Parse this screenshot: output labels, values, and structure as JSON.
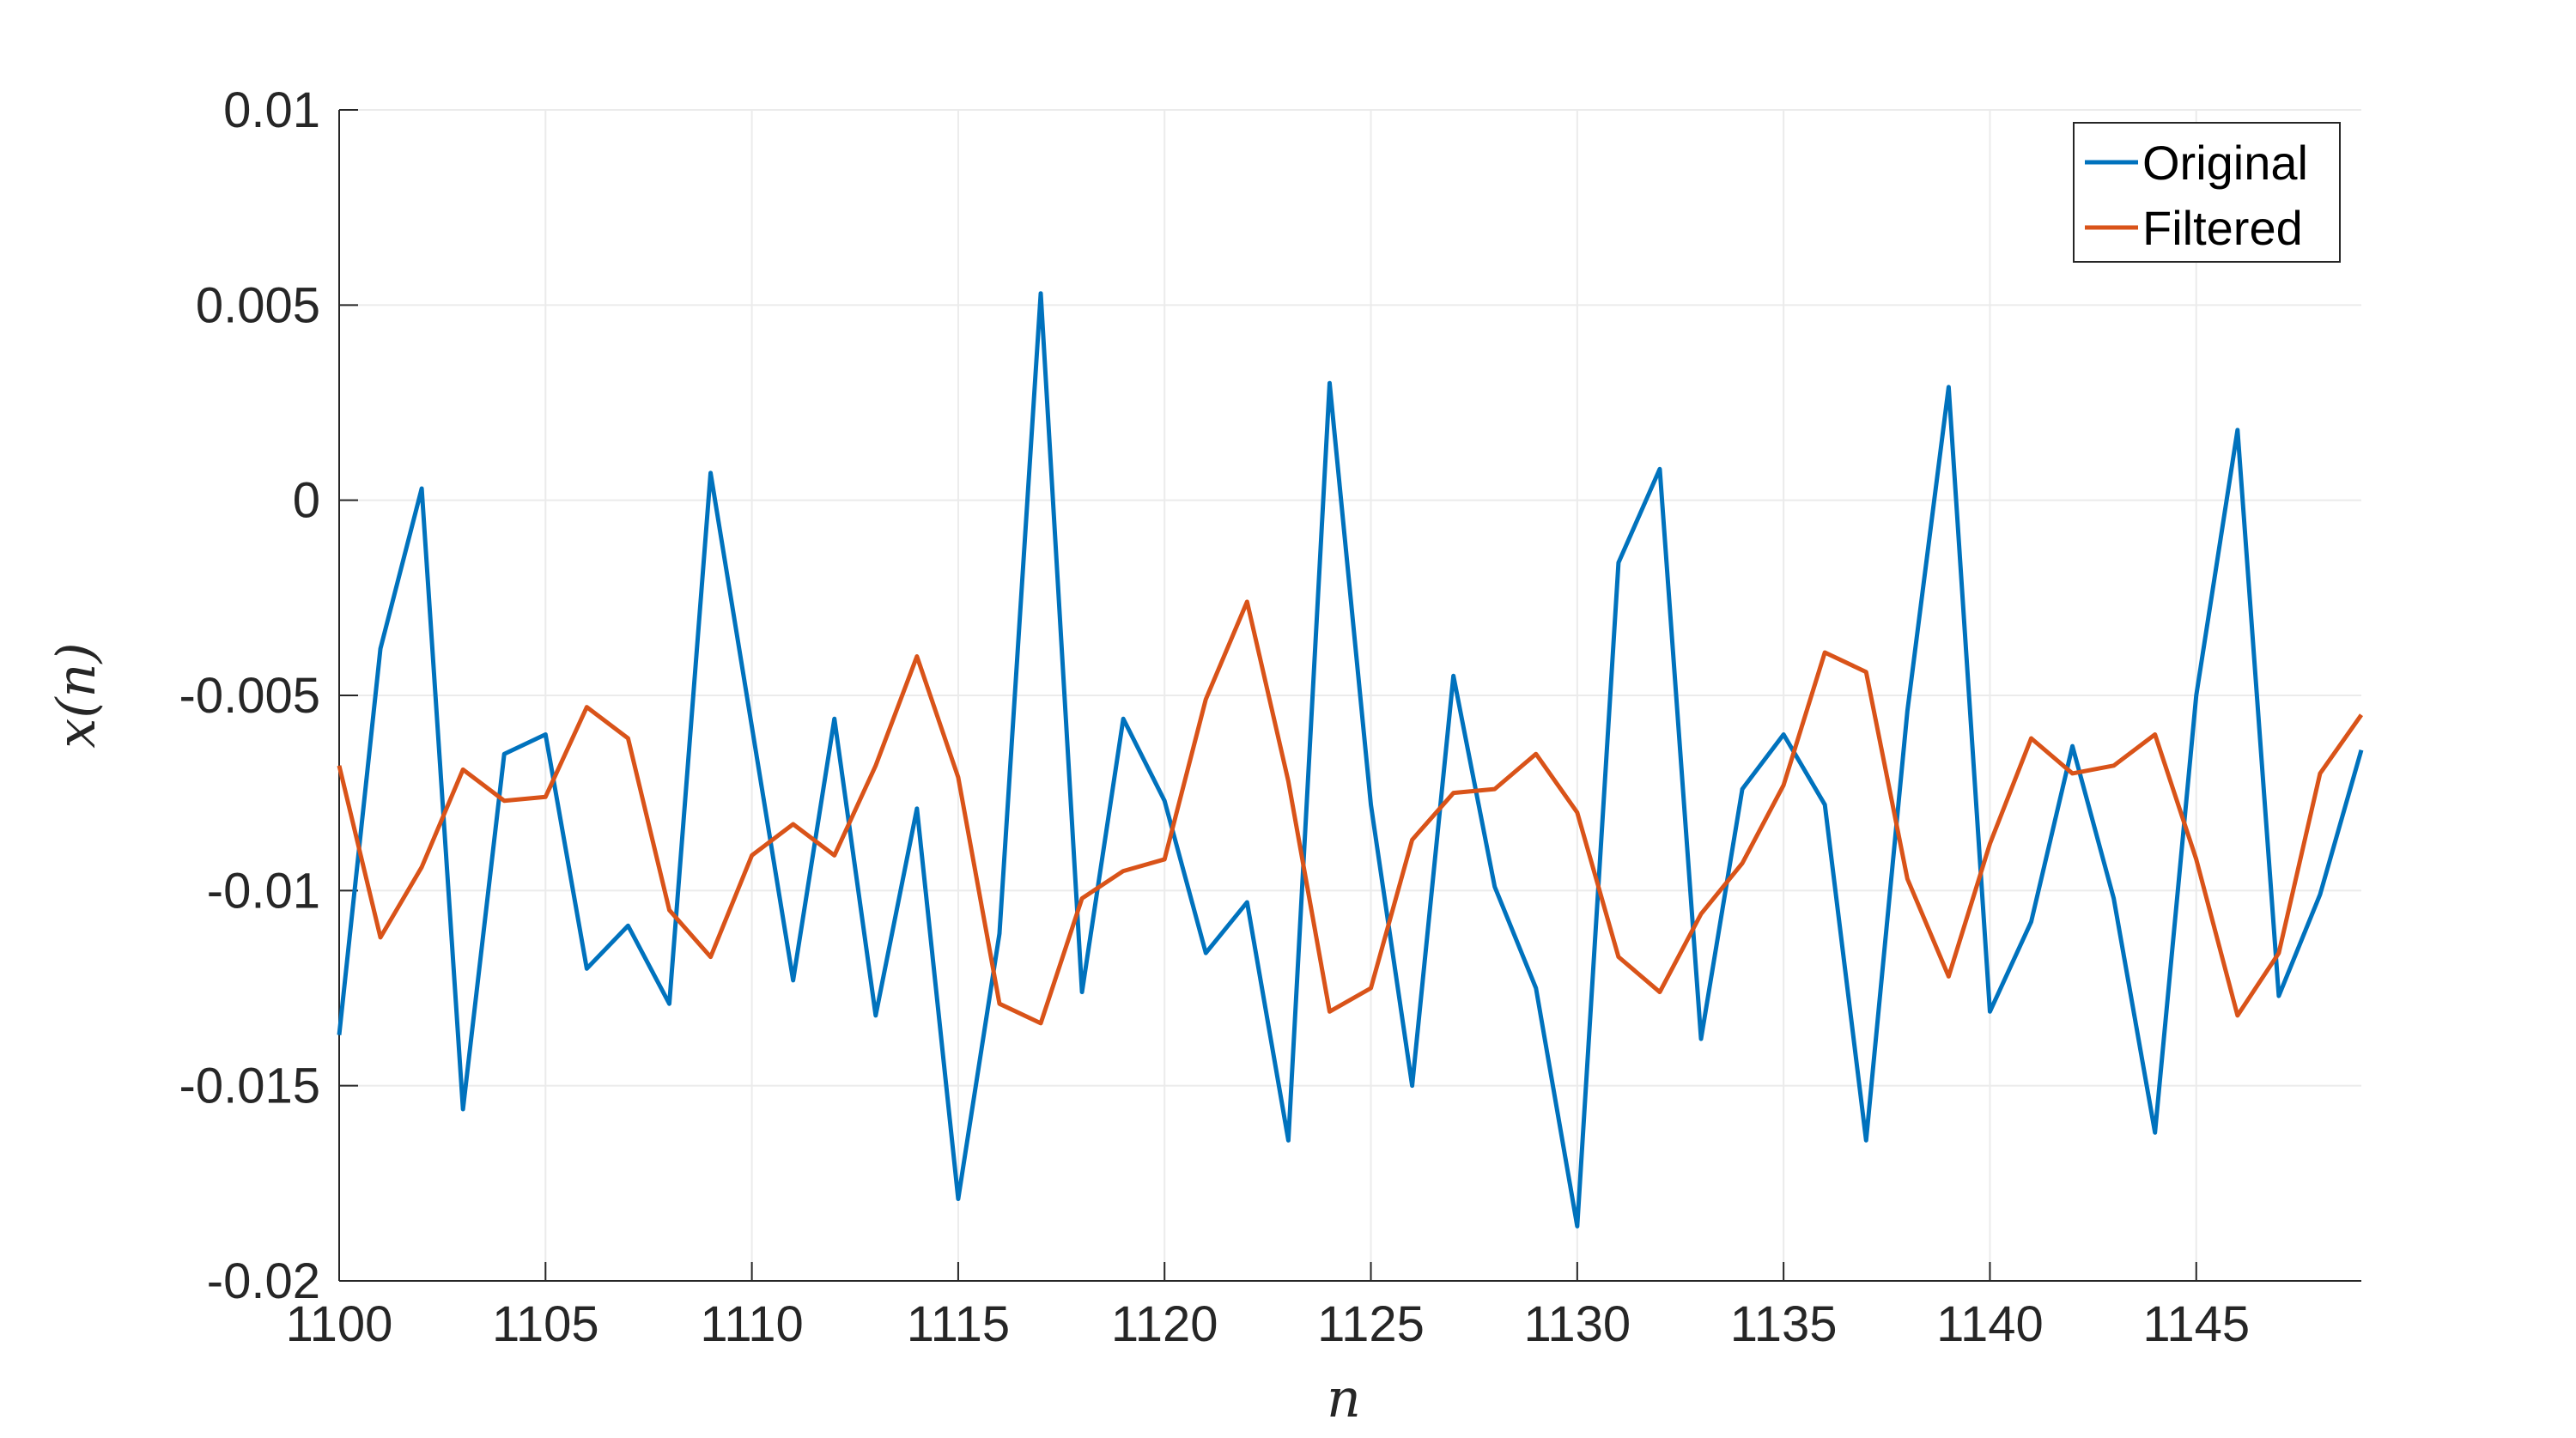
{
  "chart_data": {
    "type": "line",
    "title": "",
    "xlabel": "n",
    "ylabel": "x(n)",
    "xlim": [
      1100,
      1149
    ],
    "ylim": [
      -0.02,
      0.01
    ],
    "x_ticks": [
      1100,
      1105,
      1110,
      1115,
      1120,
      1125,
      1130,
      1135,
      1140,
      1145
    ],
    "x_tick_labels": [
      "1100",
      "1105",
      "1110",
      "1115",
      "1120",
      "1125",
      "1130",
      "1135",
      "1140",
      "1145"
    ],
    "y_ticks": [
      0.01,
      0.005,
      0,
      -0.005,
      -0.01,
      -0.015,
      -0.02
    ],
    "y_tick_labels": [
      "0.01",
      "0.005",
      "0",
      "-0.005",
      "-0.01",
      "-0.015",
      "-0.02"
    ],
    "grid": true,
    "legend_position": "top-right",
    "x": [
      1100,
      1101,
      1102,
      1103,
      1104,
      1105,
      1106,
      1107,
      1108,
      1109,
      1110,
      1111,
      1112,
      1113,
      1114,
      1115,
      1116,
      1117,
      1118,
      1119,
      1120,
      1121,
      1122,
      1123,
      1124,
      1125,
      1126,
      1127,
      1128,
      1129,
      1130,
      1131,
      1132,
      1133,
      1134,
      1135,
      1136,
      1137,
      1138,
      1139,
      1140,
      1141,
      1142,
      1143,
      1144,
      1145,
      1146,
      1147,
      1148,
      1149
    ],
    "series": [
      {
        "name": "Original",
        "color": "#0072BD",
        "values": [
          -0.0137,
          -0.0038,
          0.0003,
          -0.0156,
          -0.0065,
          -0.006,
          -0.012,
          -0.0109,
          -0.0129,
          0.0007,
          -0.0058,
          -0.0123,
          -0.0056,
          -0.0132,
          -0.0079,
          -0.0179,
          -0.0111,
          0.0053,
          -0.0126,
          -0.0056,
          -0.0077,
          -0.0116,
          -0.0103,
          -0.0164,
          0.003,
          -0.0078,
          -0.015,
          -0.0045,
          -0.0099,
          -0.0125,
          -0.0186,
          -0.0016,
          0.0008,
          -0.0138,
          -0.0074,
          -0.006,
          -0.0078,
          -0.0164,
          -0.0054,
          0.0029,
          -0.0131,
          -0.0108,
          -0.0063,
          -0.0102,
          -0.0162,
          -0.005,
          0.0018,
          -0.0127,
          -0.0101,
          -0.0064
        ]
      },
      {
        "name": "Filtered",
        "color": "#D95319",
        "values": [
          -0.0068,
          -0.0112,
          -0.0094,
          -0.0069,
          -0.0077,
          -0.0076,
          -0.0053,
          -0.0061,
          -0.0105,
          -0.0117,
          -0.0091,
          -0.0083,
          -0.0091,
          -0.0068,
          -0.004,
          -0.0071,
          -0.0129,
          -0.0134,
          -0.0102,
          -0.0095,
          -0.0092,
          -0.0051,
          -0.0026,
          -0.0072,
          -0.0131,
          -0.0125,
          -0.0087,
          -0.0075,
          -0.0074,
          -0.0065,
          -0.008,
          -0.0117,
          -0.0126,
          -0.0106,
          -0.0093,
          -0.0073,
          -0.0039,
          -0.0044,
          -0.0097,
          -0.0122,
          -0.0088,
          -0.0061,
          -0.007,
          -0.0068,
          -0.006,
          -0.0092,
          -0.0132,
          -0.0116,
          -0.007,
          -0.0055
        ]
      }
    ]
  }
}
